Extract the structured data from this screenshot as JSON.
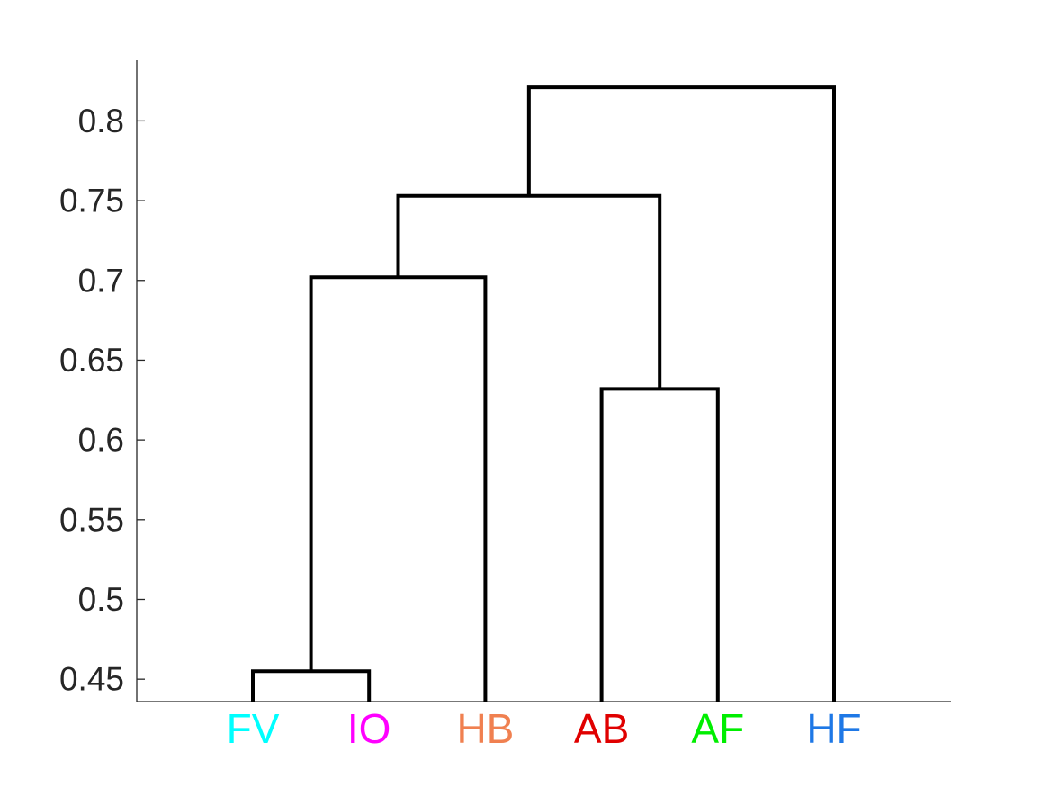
{
  "chart_data": {
    "type": "dendrogram",
    "leaves": [
      {
        "label": "FV",
        "color": "#00FFFF"
      },
      {
        "label": "IO",
        "color": "#FF00FF"
      },
      {
        "label": "HB",
        "color": "#F08050"
      },
      {
        "label": "AB",
        "color": "#E00000"
      },
      {
        "label": "AF",
        "color": "#00EE00"
      },
      {
        "label": "HF",
        "color": "#1E78E6"
      }
    ],
    "merges": [
      {
        "left": "FV",
        "right": "IO",
        "height": 0.455
      },
      {
        "left": "FV+IO",
        "right": "HB",
        "height": 0.702
      },
      {
        "left": "AB",
        "right": "AF",
        "height": 0.632
      },
      {
        "left": "FV+IO+HB",
        "right": "AB+AF",
        "height": 0.753
      },
      {
        "left": "FV+IO+HB+AB+AF",
        "right": "HF",
        "height": 0.821
      }
    ],
    "yticks": [
      0.45,
      0.5,
      0.55,
      0.6,
      0.65,
      0.7,
      0.75,
      0.8
    ],
    "ytick_labels": [
      "0.45",
      "0.5",
      "0.55",
      "0.6",
      "0.65",
      "0.7",
      "0.75",
      "0.8"
    ],
    "ylim": [
      0.436,
      0.838
    ],
    "line_color": "#000000",
    "axis_color": "#262626",
    "grid": false,
    "legend": "none",
    "title": "",
    "xlabel": "",
    "ylabel": ""
  }
}
